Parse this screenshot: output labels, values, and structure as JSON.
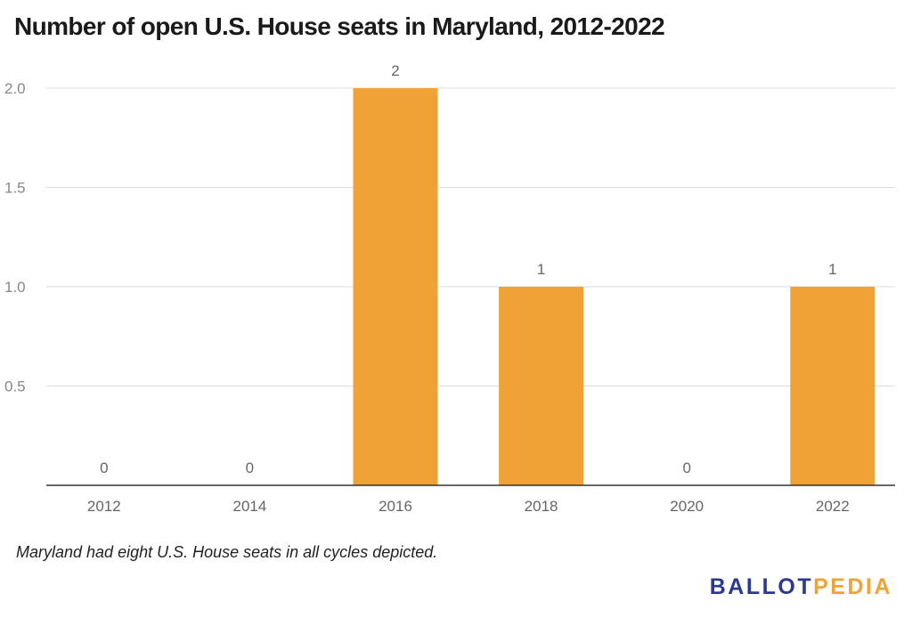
{
  "title": "Number of open U.S. House seats in Maryland, 2012-2022",
  "note": "Maryland had eight U.S. House seats in all cycles depicted.",
  "logo": {
    "part1": "BALLOT",
    "part2": "PEDIA",
    "color1": "#2b3a8c",
    "color2": "#f0a236"
  },
  "colors": {
    "bar": "#f0a236",
    "grid": "#dddddd",
    "axis": "#333333"
  },
  "chart_data": {
    "type": "bar",
    "title": "Number of open U.S. House seats in Maryland, 2012-2022",
    "categories": [
      "2012",
      "2014",
      "2016",
      "2018",
      "2020",
      "2022"
    ],
    "values": [
      0,
      0,
      2,
      1,
      0,
      1
    ],
    "data_labels": [
      "0",
      "0",
      "2",
      "1",
      "0",
      "1"
    ],
    "y_ticks": [
      "0.5",
      "1.0",
      "1.5",
      "2.0"
    ],
    "y_tick_values": [
      0.5,
      1.0,
      1.5,
      2.0
    ],
    "ylim": [
      0,
      2
    ],
    "grid": true,
    "legend": "none",
    "xlabel": "",
    "ylabel": ""
  }
}
